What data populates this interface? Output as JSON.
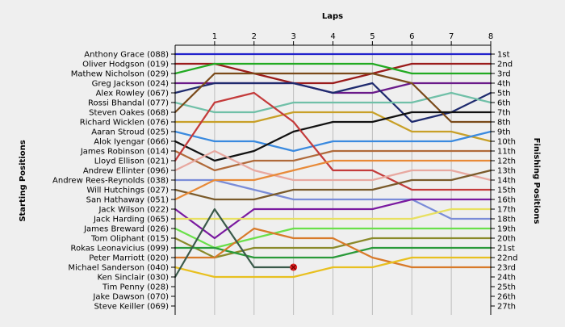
{
  "chart_data": {
    "type": "line",
    "title": "Laps",
    "ylabel": "Starting Positions",
    "y2label": "Finishing Positions",
    "x": [
      0,
      1,
      2,
      3,
      4,
      5,
      6,
      7,
      8
    ],
    "x_tick_labels": [
      "1",
      "2",
      "3",
      "4",
      "5",
      "6",
      "7",
      "8"
    ],
    "ylim": [
      1,
      27
    ],
    "y_inverted": true,
    "start_labels": [
      "Anthony Grace (088)",
      "Oliver Hodgson (019)",
      "Mathew Nicholson (029)",
      "Greg Jackson (024)",
      "Alex Rowley (067)",
      "Rossi Bhandal (077)",
      "Steven Oakes (068)",
      "Richard Wicklen (076)",
      "Aaran Stroud (025)",
      "Alok Iyengar (066)",
      "James Robinson (014)",
      "Lloyd Ellison (021)",
      "Andrew Ellinter (096)",
      "Andrew Rees-Reynolds (038)",
      "Will Hutchings (027)",
      "San Hathaway (051)",
      "Jack Wilson (022)",
      "Jack Harding (065)",
      "James Breward (026)",
      "Tom Oliphant (015)",
      "Rokas Leonavicius (099)",
      "Peter Marriott (020)",
      "Michael Sanderson (040)",
      "Ken Sinclair (030)",
      "Tim Penny (028)",
      "Jake Dawson (070)",
      "Steve Keiller (069)"
    ],
    "finish_labels": [
      "1st",
      "2nd",
      "3rd",
      "4th",
      "5th",
      "6th",
      "7th",
      "8th",
      "9th",
      "10th",
      "11th",
      "12th",
      "13th",
      "14th",
      "15th",
      "16th",
      "17th",
      "18th",
      "19th",
      "20th",
      "21st",
      "22nd",
      "23rd",
      "24th",
      "25th",
      "26th",
      "27th"
    ],
    "series": [
      {
        "color": "#2222cc",
        "values": [
          null,
          1,
          1,
          1,
          1,
          1,
          1,
          1,
          1
        ]
      },
      {
        "color": "#9a1b1b",
        "values": [
          null,
          2,
          3,
          4,
          4,
          3,
          2,
          2,
          2
        ]
      },
      {
        "color": "#22aa22",
        "values": [
          null,
          2,
          2,
          2,
          2,
          2,
          3,
          3,
          3
        ]
      },
      {
        "color": "#6a1a8a",
        "values": [
          null,
          4,
          4,
          4,
          5,
          5,
          4,
          4,
          4
        ]
      },
      {
        "color": "#1e2a6e",
        "values": [
          null,
          4,
          4,
          4,
          5,
          4,
          8,
          7,
          5
        ]
      },
      {
        "color": "#70c0a8",
        "values": [
          null,
          7,
          7,
          6,
          6,
          6,
          6,
          5,
          6
        ]
      },
      {
        "color": "#7a4a1a",
        "values": [
          null,
          3,
          3,
          3,
          3,
          3,
          4,
          8,
          8
        ]
      },
      {
        "color": "#c8a028",
        "values": [
          null,
          8,
          8,
          7,
          7,
          7,
          9,
          9,
          10
        ]
      },
      {
        "color": "#3a8adf",
        "values": [
          null,
          10,
          10,
          11,
          10,
          10,
          10,
          10,
          9
        ]
      },
      {
        "color": "#111111",
        "values": [
          null,
          12,
          11,
          9,
          8,
          8,
          7,
          7,
          7
        ]
      },
      {
        "color": "#b06a3a",
        "values": [
          null,
          13,
          12,
          12,
          11,
          11,
          11,
          11,
          11
        ]
      },
      {
        "color": "#c43b3b",
        "values": [
          null,
          6,
          5,
          8,
          13,
          13,
          15,
          15,
          15
        ]
      },
      {
        "color": "#e8a8a0",
        "values": [
          null,
          11,
          13,
          14,
          14,
          14,
          13,
          13,
          14
        ]
      },
      {
        "color": "#7a8cd8",
        "values": [
          null,
          14,
          15,
          16,
          16,
          16,
          16,
          18,
          18
        ]
      },
      {
        "color": "#7a5a2a",
        "values": [
          null,
          16,
          16,
          15,
          15,
          15,
          14,
          14,
          13
        ]
      },
      {
        "color": "#e88a38",
        "values": [
          null,
          14,
          14,
          13,
          12,
          12,
          12,
          12,
          12
        ]
      },
      {
        "color": "#7a1aa0",
        "values": [
          null,
          20,
          17,
          17,
          17,
          17,
          16,
          16,
          16
        ]
      },
      {
        "color": "#e8e060",
        "values": [
          null,
          18,
          18,
          18,
          18,
          18,
          18,
          17,
          17
        ]
      },
      {
        "color": "#6ae04a",
        "values": [
          null,
          21,
          20,
          19,
          19,
          19,
          19,
          19,
          19
        ]
      },
      {
        "color": "#8a8a2a",
        "values": [
          null,
          22,
          21,
          21,
          21,
          20,
          20,
          20,
          20
        ]
      },
      {
        "color": "#2a9a3a",
        "values": [
          null,
          21,
          22,
          22,
          22,
          21,
          21,
          21,
          21
        ]
      },
      {
        "color": "#d87a2a",
        "values": [
          null,
          22,
          19,
          20,
          20,
          22,
          23,
          23,
          23
        ]
      },
      {
        "color": "#e8c020",
        "values": [
          null,
          24,
          24,
          24,
          23,
          23,
          22,
          22,
          22
        ]
      },
      {
        "color": "#3a5a4a",
        "values": [
          null,
          17,
          23,
          23,
          null,
          null,
          null,
          null,
          null
        ]
      }
    ],
    "retired_marker": {
      "x": 3,
      "y": 23,
      "color": "#dd2222"
    }
  }
}
